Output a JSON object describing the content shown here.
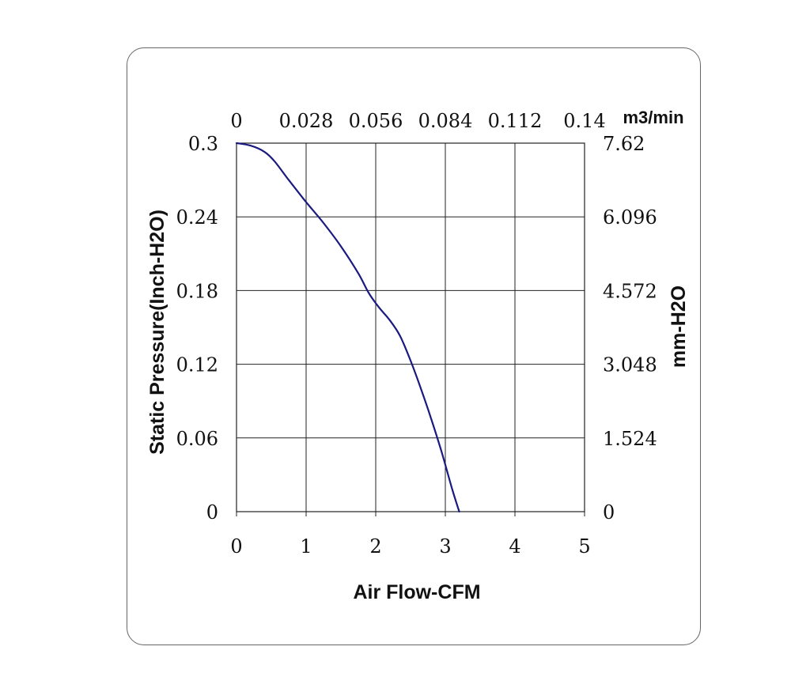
{
  "chart_data": {
    "type": "line",
    "xlabel": "Air Flow-CFM",
    "ylabel": "Static Pressure(Inch-H2O)",
    "x2label": "m3/min",
    "y2label": "mm-H2O",
    "xlim": [
      0,
      5
    ],
    "ylim": [
      0,
      0.3
    ],
    "x_ticks": [
      "0",
      "1",
      "2",
      "3",
      "4",
      "5"
    ],
    "y_ticks": [
      "0",
      "0.06",
      "0.12",
      "0.18",
      "0.24",
      "0.3"
    ],
    "x2_ticks": [
      "0",
      "0.028",
      "0.056",
      "0.084",
      "0.112",
      "0.14"
    ],
    "y2_ticks": [
      "0",
      "1.524",
      "3.048",
      "4.572",
      "6.096",
      "7.62"
    ],
    "grid": true,
    "line_color": "#1a1a80",
    "series": [
      {
        "x": [
          0,
          0.2,
          0.4,
          0.55,
          0.75,
          1.0,
          1.25,
          1.5,
          1.75,
          1.9,
          2.05,
          2.2,
          2.35,
          2.5,
          2.65,
          2.8,
          2.95,
          3.1,
          3.2
        ],
        "y": [
          0.3,
          0.298,
          0.293,
          0.285,
          0.27,
          0.252,
          0.235,
          0.216,
          0.194,
          0.178,
          0.166,
          0.156,
          0.143,
          0.123,
          0.1,
          0.075,
          0.048,
          0.018,
          0
        ]
      }
    ]
  }
}
